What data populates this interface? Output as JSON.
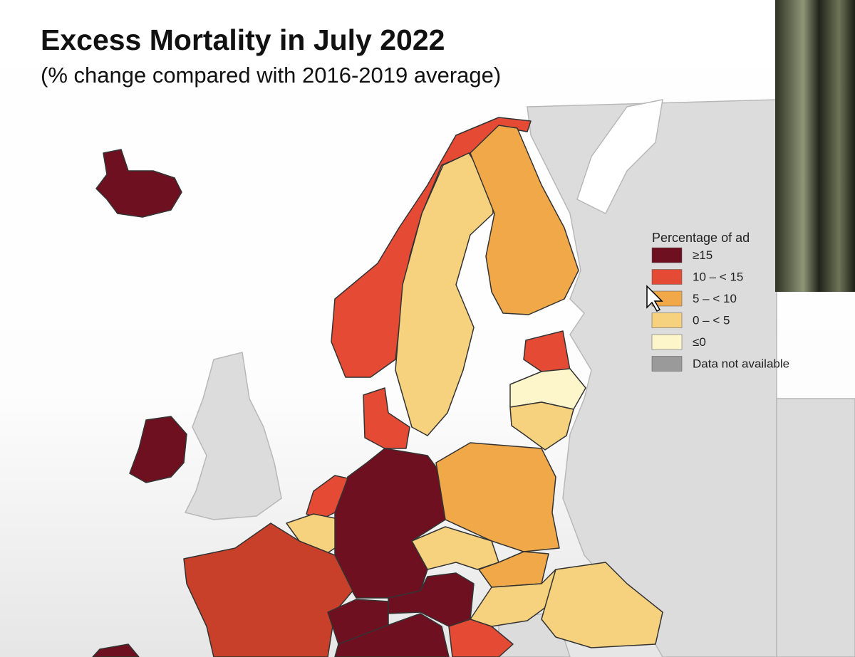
{
  "header": {
    "title": "Excess Mortality in July 2022",
    "subtitle": "(% change compared with 2016-2019 average)"
  },
  "legend": {
    "title": "Percentage of ad",
    "items": [
      {
        "label": "≥15",
        "color": "#6e1020"
      },
      {
        "label": "10 – < 15",
        "color": "#e54b34"
      },
      {
        "label": "5 – < 10",
        "color": "#f0a848"
      },
      {
        "label": "0 – < 5",
        "color": "#f6d27e"
      },
      {
        "label": "≤0",
        "color": "#fdf6cb"
      },
      {
        "label": "Data not available",
        "color": "#9a9a9a"
      }
    ]
  }
}
